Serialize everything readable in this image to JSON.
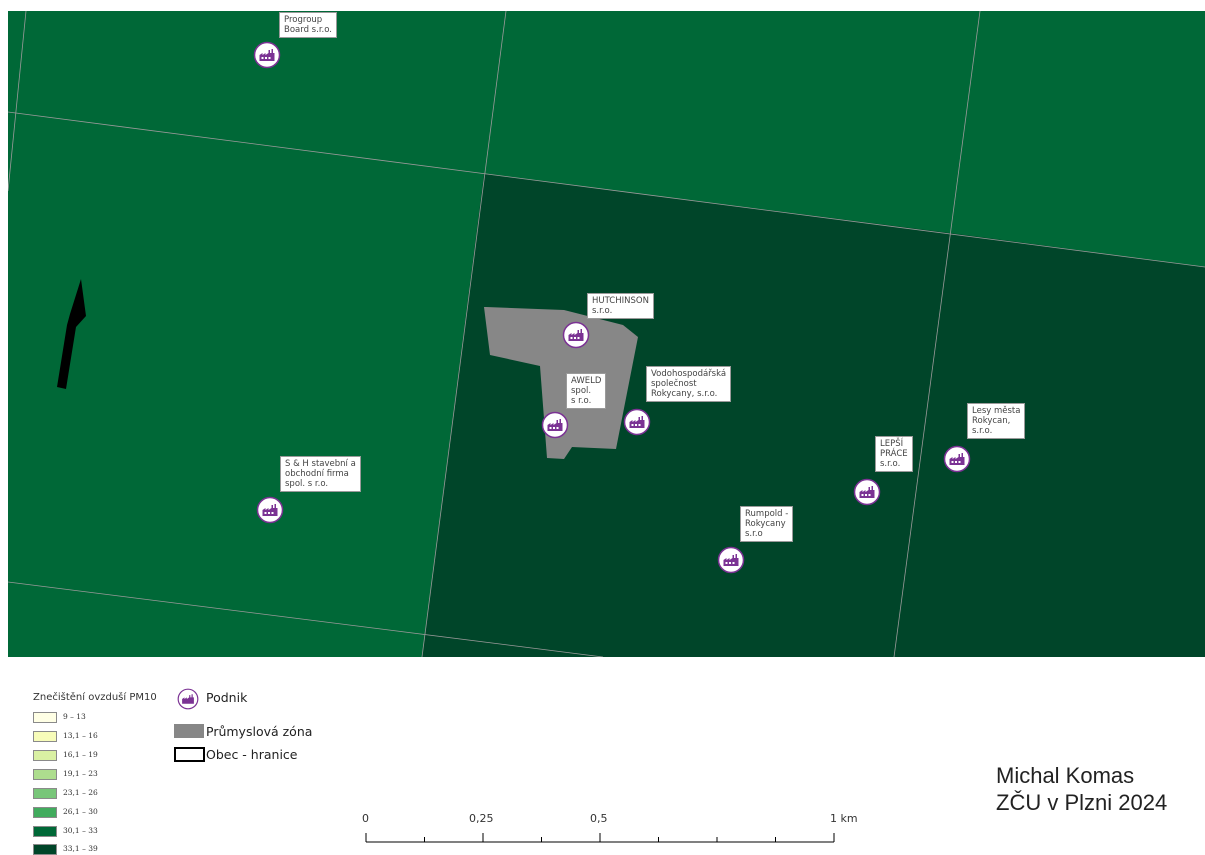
{
  "map": {
    "colors": {
      "zone_30_33": "#006837",
      "zone_33_39": "#004529",
      "industrial": "#878787",
      "grid_line": "#9a9a9a",
      "poi_purple": "#7b3294"
    },
    "companies": [
      {
        "id": "progroup",
        "lines": [
          "Progroup",
          "Board s.r.o."
        ]
      },
      {
        "id": "hutchinson",
        "lines": [
          "HUTCHINSON",
          "s.r.o."
        ]
      },
      {
        "id": "aweld",
        "lines": [
          "AWELD",
          "spol.",
          "s r.o."
        ]
      },
      {
        "id": "vodohospodarska",
        "lines": [
          "Vodohospodářská",
          "společnost",
          "Rokycany, s.r.o."
        ]
      },
      {
        "id": "sh",
        "lines": [
          "S & H stavební a",
          "obchodní firma",
          "spol. s r.o."
        ]
      },
      {
        "id": "lepsi",
        "lines": [
          "LEPŠÍ",
          "PRÁCE",
          "s.r.o."
        ]
      },
      {
        "id": "lesy",
        "lines": [
          "Lesy města",
          "Rokycan,",
          "s.r.o."
        ]
      },
      {
        "id": "rumpold",
        "lines": [
          "Rumpold -",
          "Rokycany",
          "s.r.o"
        ]
      }
    ],
    "north_arrow_icon": "north-arrow-icon"
  },
  "legend": {
    "title": "Znečištění ovzduší PM10",
    "classes": [
      {
        "label": "9 – 13",
        "color": "#ffffe5"
      },
      {
        "label": "13,1 – 16",
        "color": "#f7fcb9"
      },
      {
        "label": "16,1 – 19",
        "color": "#d9f0a3"
      },
      {
        "label": "19,1 – 23",
        "color": "#addd8e"
      },
      {
        "label": "23,1 – 26",
        "color": "#78c679"
      },
      {
        "label": "26,1 – 30",
        "color": "#41ab5d"
      },
      {
        "label": "30,1 – 33",
        "color": "#006837"
      },
      {
        "label": "33,1 – 39",
        "color": "#004529"
      }
    ],
    "podnik": "Podnik",
    "industrial": "Průmyslová zóna",
    "boundary": "Obec - hranice"
  },
  "scalebar": {
    "labels": [
      "0",
      "0,25",
      "0,5",
      "1 km"
    ]
  },
  "author": {
    "name": "Michal Komas",
    "affiliation": "ZČU v Plzni 2024"
  }
}
